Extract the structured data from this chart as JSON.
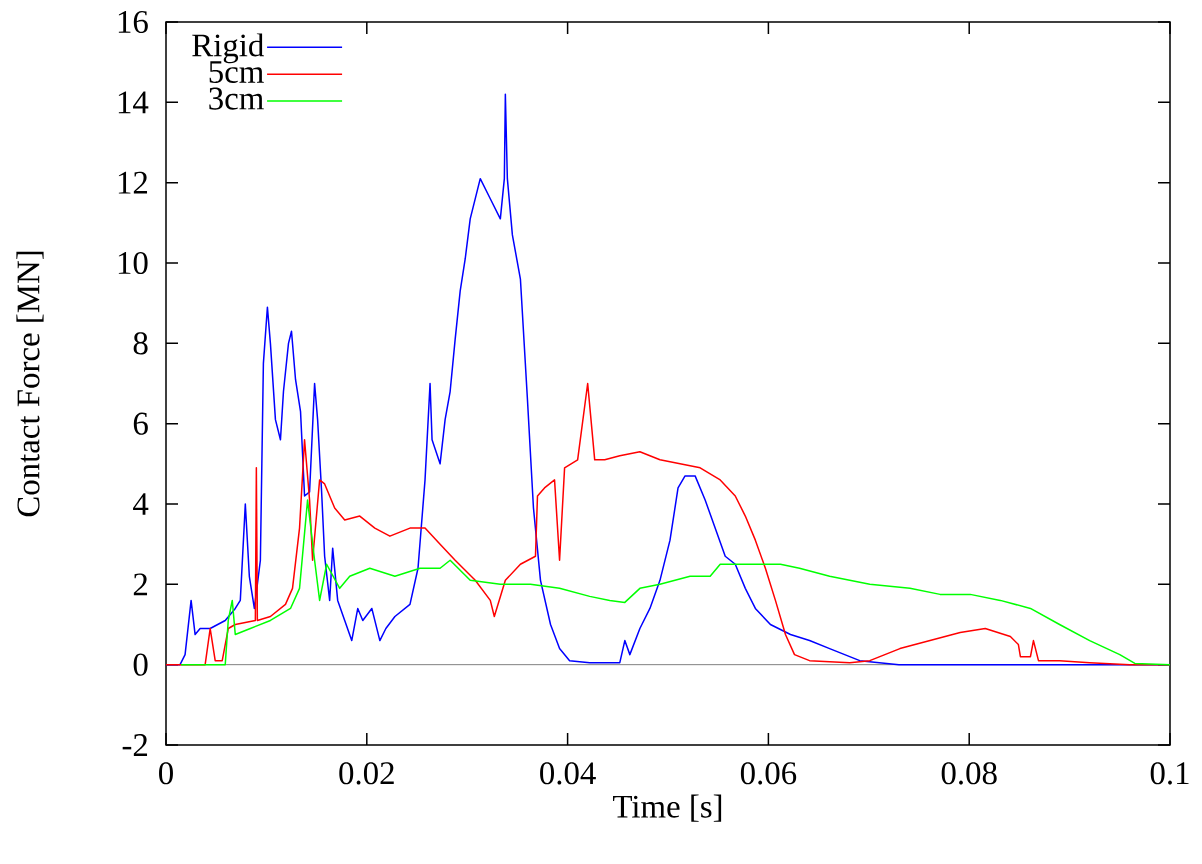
{
  "chart_data": {
    "type": "line",
    "xlabel": "Time [s]",
    "ylabel": "Contact Force [MN]",
    "xlim": [
      0,
      0.1
    ],
    "ylim": [
      -2,
      16
    ],
    "xticks": [
      0,
      0.02,
      0.04,
      0.06,
      0.08,
      0.1
    ],
    "yticks": [
      -2,
      0,
      2,
      4,
      6,
      8,
      10,
      12,
      14,
      16
    ],
    "legend": "top left",
    "ref_lines": [
      {
        "axis": "y",
        "value": 0,
        "color": "#808080"
      }
    ],
    "series": [
      {
        "name": "Rigid",
        "color": "#0000ff",
        "x": [
          0,
          0.0014,
          0.0019,
          0.0025,
          0.0029,
          0.0034,
          0.0044,
          0.0059,
          0.0069,
          0.0074,
          0.0079,
          0.0083,
          0.0088,
          0.0094,
          0.0097,
          0.0101,
          0.0104,
          0.0109,
          0.0114,
          0.0117,
          0.0122,
          0.0125,
          0.0129,
          0.0134,
          0.0138,
          0.0143,
          0.0148,
          0.0151,
          0.0155,
          0.0158,
          0.0163,
          0.0166,
          0.0171,
          0.0178,
          0.0185,
          0.0191,
          0.0196,
          0.0205,
          0.0213,
          0.0219,
          0.0228,
          0.0243,
          0.0251,
          0.0258,
          0.0263,
          0.0265,
          0.0273,
          0.0278,
          0.0283,
          0.0288,
          0.0293,
          0.0298,
          0.0303,
          0.0313,
          0.0323,
          0.0333,
          0.0337,
          0.0338,
          0.034,
          0.0345,
          0.0353,
          0.036,
          0.0366,
          0.0373,
          0.0383,
          0.0392,
          0.0402,
          0.0422,
          0.0452,
          0.0457,
          0.0462,
          0.0472,
          0.0482,
          0.0492,
          0.0502,
          0.051,
          0.0517,
          0.0527,
          0.0537,
          0.0547,
          0.0557,
          0.0567,
          0.0577,
          0.0587,
          0.0602,
          0.0622,
          0.0641,
          0.0661,
          0.0691,
          0.073,
          0.085,
          0.1
        ],
        "values": [
          0,
          0,
          0.25,
          1.6,
          0.75,
          0.9,
          0.9,
          1.1,
          1.4,
          1.6,
          4.0,
          2.2,
          1.4,
          2.6,
          7.5,
          8.9,
          8.0,
          6.1,
          5.6,
          6.8,
          8.0,
          8.3,
          7.1,
          6.3,
          4.2,
          4.3,
          7.0,
          6.1,
          4.3,
          2.7,
          1.6,
          2.9,
          1.6,
          1.1,
          0.6,
          1.4,
          1.1,
          1.4,
          0.6,
          0.9,
          1.2,
          1.5,
          2.4,
          4.6,
          7.0,
          5.6,
          5.0,
          6.1,
          6.8,
          8.1,
          9.3,
          10.1,
          11.1,
          12.1,
          11.6,
          11.1,
          12.1,
          14.2,
          12.1,
          10.7,
          9.6,
          6.6,
          3.9,
          2.1,
          1.0,
          0.4,
          0.1,
          0.05,
          0.05,
          0.6,
          0.25,
          0.9,
          1.4,
          2.1,
          3.1,
          4.4,
          4.7,
          4.7,
          4.1,
          3.4,
          2.7,
          2.5,
          1.9,
          1.4,
          1.0,
          0.75,
          0.6,
          0.4,
          0.1,
          0,
          0,
          0
        ]
      },
      {
        "name": "5cm",
        "color": "#ff0000",
        "x": [
          0,
          0.0039,
          0.0044,
          0.0049,
          0.0056,
          0.0062,
          0.0069,
          0.0089,
          0.009,
          0.0091,
          0.0104,
          0.0119,
          0.0126,
          0.0133,
          0.0138,
          0.0143,
          0.0146,
          0.0153,
          0.0158,
          0.0168,
          0.0178,
          0.0193,
          0.0208,
          0.0223,
          0.0243,
          0.0258,
          0.0273,
          0.0288,
          0.0308,
          0.0323,
          0.0327,
          0.0338,
          0.0353,
          0.0368,
          0.037,
          0.0377,
          0.0387,
          0.0392,
          0.0397,
          0.041,
          0.042,
          0.0427,
          0.0437,
          0.0452,
          0.0472,
          0.0492,
          0.0512,
          0.0532,
          0.0552,
          0.0567,
          0.0577,
          0.0587,
          0.0597,
          0.0607,
          0.0617,
          0.0626,
          0.0641,
          0.0681,
          0.0701,
          0.0731,
          0.0761,
          0.0791,
          0.0816,
          0.0841,
          0.0849,
          0.0851,
          0.0861,
          0.0864,
          0.0869,
          0.089,
          0.092,
          0.096,
          0.1
        ],
        "values": [
          0,
          0,
          0.9,
          0.1,
          0.1,
          0.9,
          1.0,
          1.1,
          4.9,
          1.1,
          1.2,
          1.5,
          1.9,
          3.4,
          5.6,
          4.1,
          2.6,
          4.6,
          4.5,
          3.9,
          3.6,
          3.7,
          3.4,
          3.2,
          3.4,
          3.4,
          3.0,
          2.6,
          2.1,
          1.6,
          1.2,
          2.1,
          2.5,
          2.7,
          4.2,
          4.4,
          4.6,
          2.6,
          4.9,
          5.1,
          7.0,
          5.1,
          5.1,
          5.2,
          5.3,
          5.1,
          5.0,
          4.9,
          4.6,
          4.2,
          3.7,
          3.1,
          2.4,
          1.6,
          0.75,
          0.25,
          0.1,
          0.05,
          0.1,
          0.4,
          0.6,
          0.8,
          0.9,
          0.7,
          0.5,
          0.2,
          0.2,
          0.6,
          0.1,
          0.1,
          0.05,
          0,
          0
        ]
      },
      {
        "name": "3cm",
        "color": "#00ff00",
        "x": [
          0.0015,
          0.0059,
          0.0062,
          0.0066,
          0.0069,
          0.0084,
          0.0104,
          0.0124,
          0.0133,
          0.0141,
          0.0148,
          0.0153,
          0.016,
          0.0173,
          0.0183,
          0.0203,
          0.0228,
          0.0253,
          0.0273,
          0.0283,
          0.0303,
          0.0333,
          0.0363,
          0.0392,
          0.0422,
          0.0442,
          0.0457,
          0.0472,
          0.0492,
          0.0522,
          0.0542,
          0.0552,
          0.0582,
          0.0612,
          0.0631,
          0.0661,
          0.0701,
          0.0741,
          0.0771,
          0.0801,
          0.0831,
          0.0861,
          0.089,
          0.092,
          0.095,
          0.0965,
          0.1
        ],
        "values": [
          0,
          0,
          1.1,
          1.6,
          0.75,
          0.9,
          1.1,
          1.4,
          1.9,
          4.1,
          2.6,
          1.6,
          2.5,
          1.9,
          2.2,
          2.4,
          2.2,
          2.4,
          2.4,
          2.6,
          2.1,
          2.0,
          2.0,
          1.9,
          1.7,
          1.6,
          1.55,
          1.9,
          2.0,
          2.2,
          2.2,
          2.5,
          2.5,
          2.5,
          2.4,
          2.2,
          2.0,
          1.9,
          1.75,
          1.75,
          1.6,
          1.4,
          1.0,
          0.6,
          0.25,
          0.03,
          0
        ]
      }
    ]
  }
}
